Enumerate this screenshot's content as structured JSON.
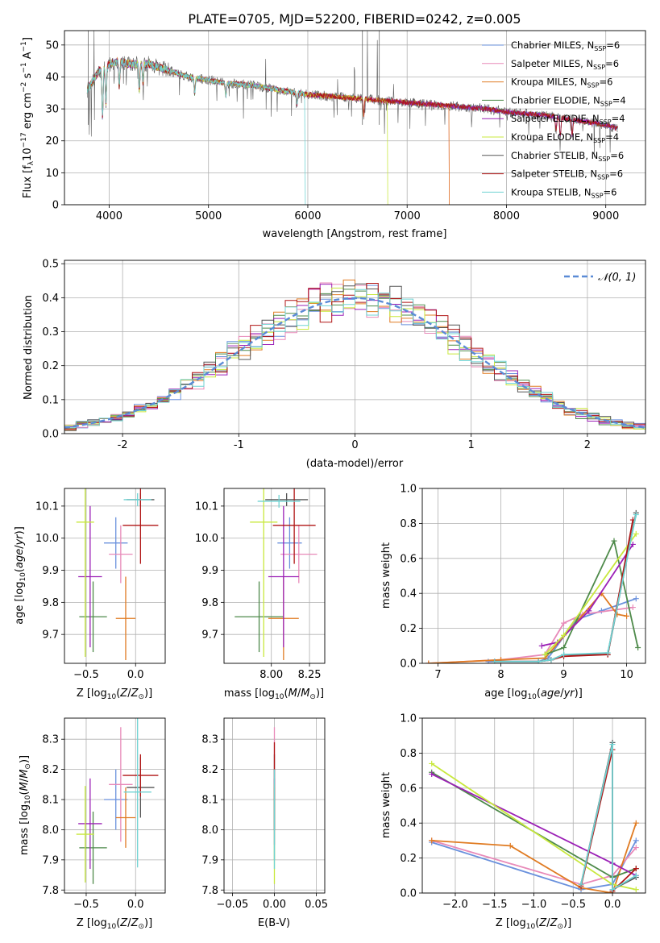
{
  "figure_title": "PLATE=0705, MJD=52200, FIBERID=0242, z=0.005",
  "colors": [
    "#6a91dd",
    "#e88ab9",
    "#e07b22",
    "#4e8a4a",
    "#9b20b6",
    "#c8e83c",
    "#555555",
    "#b01515",
    "#6fd3d3"
  ],
  "series_names": [
    "Chabrier MILES, N_SSP=6",
    "Salpeter MILES, N_SSP=6",
    "Kroupa MILES, N_SSP=6",
    "Chabrier ELODIE, N_SSP=4",
    "Salpeter ELODIE, N_SSP=4",
    "Kroupa ELODIE, N_SSP=4",
    "Chabrier STELIB, N_SSP=6",
    "Salpeter STELIB, N_SSP=6",
    "Kroupa STELIB, N_SSP=6"
  ],
  "legend_parts": [
    [
      "Chabrier MILES, N",
      "SSP",
      "=6"
    ],
    [
      "Salpeter MILES, N",
      "SSP",
      "=6"
    ],
    [
      "Kroupa MILES, N",
      "SSP",
      "=6"
    ],
    [
      "Chabrier ELODIE, N",
      "SSP",
      "=4"
    ],
    [
      "Salpeter ELODIE, N",
      "SSP",
      "=4"
    ],
    [
      "Kroupa ELODIE, N",
      "SSP",
      "=4"
    ],
    [
      "Chabrier STELIB, N",
      "SSP",
      "=6"
    ],
    [
      "Salpeter STELIB, N",
      "SSP",
      "=6"
    ],
    [
      "Kroupa STELIB, N",
      "SSP",
      "=6"
    ]
  ],
  "axis_text": {
    "spec_xlabel": "wavelength [Angstrom, rest frame]",
    "spec_ylabel": "Flux [f_λ10^-17 erg cm^-2 s^-1 A^-1]",
    "hist_xlabel": "(data-model)/error",
    "hist_ylabel": "Normed distribution",
    "hist_legend": "𝒩(0, 1)",
    "age_ylabel": "age  [log10(age/yr)]",
    "z_xlabel": "Z [log10(Z/Z⊙)]",
    "mass_xlabel": "mass [log10(M/M⊙)]",
    "mass_ylabel": "mass [log10(M/M⊙)]",
    "ebv_xlabel": "E(B-V)",
    "mw_ylabel": "mass weight",
    "age_xlabel": "age  [log10(age/yr)]"
  },
  "chart_data": [
    {
      "id": "spectrum",
      "type": "line",
      "title": "PLATE=0705, MJD=52200, FIBERID=0242, z=0.005",
      "xlabel": "wavelength [Angstrom, rest frame]",
      "ylabel": "Flux [f_λ10^-17 erg cm^-2 s^-1 A^-1]",
      "xlim": [
        3550,
        9400
      ],
      "ylim": [
        0,
        54.5
      ],
      "xticks": [
        4000,
        5000,
        6000,
        7000,
        8000,
        9000
      ],
      "yticks": [
        0,
        10,
        20,
        30,
        40,
        50
      ],
      "legend": "top-right",
      "continuum": [
        [
          3780,
          36
        ],
        [
          3900,
          42
        ],
        [
          4000,
          44
        ],
        [
          4100,
          45
        ],
        [
          4200,
          44
        ],
        [
          4400,
          44
        ],
        [
          4600,
          42
        ],
        [
          4800,
          40
        ],
        [
          5000,
          39
        ],
        [
          5200,
          38
        ],
        [
          5400,
          37.5
        ],
        [
          5600,
          36.5
        ],
        [
          5800,
          35.5
        ],
        [
          6000,
          34.5
        ],
        [
          6200,
          34
        ],
        [
          6400,
          33.5
        ],
        [
          6600,
          33
        ],
        [
          6800,
          32.5
        ],
        [
          7000,
          32
        ],
        [
          7200,
          31.5
        ],
        [
          7400,
          31
        ],
        [
          7600,
          30.5
        ],
        [
          7800,
          30
        ],
        [
          8000,
          29
        ],
        [
          8200,
          28.5
        ],
        [
          8400,
          28
        ],
        [
          8600,
          27
        ],
        [
          8800,
          26
        ],
        [
          9000,
          25
        ],
        [
          9100,
          24
        ]
      ],
      "absorption": [
        [
          3933,
          15
        ],
        [
          3968,
          12
        ],
        [
          4102,
          8
        ],
        [
          4304,
          8
        ],
        [
          4341,
          6
        ],
        [
          4861,
          5
        ],
        [
          5175,
          4
        ],
        [
          5890,
          4
        ],
        [
          6563,
          5
        ],
        [
          8498,
          4
        ],
        [
          8542,
          6
        ],
        [
          8662,
          5
        ]
      ],
      "spikes": [
        [
          3800,
          20
        ],
        [
          3820,
          18
        ],
        [
          3850,
          14
        ],
        [
          4050,
          8
        ],
        [
          5577,
          10
        ],
        [
          6300,
          6
        ],
        [
          6470,
          10
        ],
        [
          6600,
          20
        ],
        [
          6700,
          20
        ],
        [
          6864,
          6
        ]
      ],
      "range_ends": [
        [
          "Salpeter MILES",
          7420
        ],
        [
          "Kroupa MILES",
          7420
        ],
        [
          "Kroupa ELODIE",
          6800
        ],
        [
          "Kroupa STELIB",
          5970
        ]
      ]
    },
    {
      "id": "residuals",
      "type": "bar",
      "xlabel": "(data-model)/error",
      "ylabel": "Normed distribution",
      "xlim": [
        -2.5,
        2.5
      ],
      "ylim": [
        0,
        0.51
      ],
      "xticks": [
        -2,
        -1,
        0,
        1,
        2
      ],
      "yticks": [
        0.0,
        0.1,
        0.2,
        0.3,
        0.4,
        0.5
      ],
      "bin_width": 0.1,
      "reference_curve": "N(0,1)",
      "reference_label": "𝒩(0, 1)",
      "legend": "top-right"
    },
    {
      "id": "age_vs_Z",
      "type": "scatter",
      "xlabel": "Z [log10(Z/Z⊙)]",
      "ylabel": "age  [log10(age/yr)]",
      "xlim": [
        -0.72,
        0.3
      ],
      "ylim": [
        9.61,
        10.155
      ],
      "xticks": [
        -0.5,
        0.0
      ],
      "yticks": [
        9.7,
        9.8,
        9.9,
        10.0,
        10.1
      ],
      "points": [
        {
          "x": -0.2,
          "y": 9.985,
          "xerr": 0.12,
          "yerr": 0.08
        },
        {
          "x": -0.15,
          "y": 9.95,
          "xerr": 0.12,
          "yerr": 0.09
        },
        {
          "x": -0.1,
          "y": 9.75,
          "xerr": 0.1,
          "yerr": 0.13
        },
        {
          "x": -0.43,
          "y": 9.755,
          "xerr": 0.14,
          "yerr": 0.11
        },
        {
          "x": -0.46,
          "y": 9.88,
          "xerr": 0.12,
          "yerr": 0.22
        },
        {
          "x": -0.51,
          "y": 10.05,
          "xerr": 0.09,
          "yerr": 0.42
        },
        {
          "x": 0.05,
          "y": 10.12,
          "xerr": 0.14,
          "yerr": 0.02
        },
        {
          "x": 0.05,
          "y": 10.04,
          "xerr": 0.18,
          "yerr": 0.12
        },
        {
          "x": 0.02,
          "y": 10.12,
          "xerr": 0.14,
          "yerr": 0.02
        }
      ]
    },
    {
      "id": "age_vs_mass",
      "type": "scatter",
      "xlabel": "mass [log10(M/M⊙)]",
      "ylabel": "",
      "xlim": [
        7.69,
        8.35
      ],
      "ylim": [
        9.61,
        10.155
      ],
      "xticks": [
        8.0,
        8.25
      ],
      "points": [
        {
          "x": 8.12,
          "y": 9.985,
          "xerr": 0.08,
          "yerr": 0.08
        },
        {
          "x": 8.18,
          "y": 9.95,
          "xerr": 0.12,
          "yerr": 0.09
        },
        {
          "x": 8.08,
          "y": 9.75,
          "xerr": 0.1,
          "yerr": 0.13
        },
        {
          "x": 7.92,
          "y": 9.755,
          "xerr": 0.16,
          "yerr": 0.11
        },
        {
          "x": 8.08,
          "y": 9.88,
          "xerr": 0.1,
          "yerr": 0.22
        },
        {
          "x": 7.95,
          "y": 10.05,
          "xerr": 0.09,
          "yerr": 0.42
        },
        {
          "x": 8.1,
          "y": 10.12,
          "xerr": 0.14,
          "yerr": 0.02
        },
        {
          "x": 8.15,
          "y": 10.04,
          "xerr": 0.14,
          "yerr": 0.12
        },
        {
          "x": 8.05,
          "y": 10.115,
          "xerr": 0.14,
          "yerr": 0.02
        }
      ]
    },
    {
      "id": "mw_vs_age",
      "type": "line",
      "xlabel": "age  [log10(age/yr)]",
      "ylabel": "mass weight",
      "xlim": [
        6.75,
        10.3
      ],
      "ylim": [
        0,
        1.0
      ],
      "xticks": [
        7,
        8,
        9,
        10
      ],
      "yticks": [
        0.0,
        0.2,
        0.4,
        0.6,
        0.8,
        1.0
      ],
      "series": [
        {
          "name": "Chabrier MILES, N_SSP=6",
          "x": [
            7.8,
            8.6,
            8.75,
            9.2,
            9.6,
            10.15
          ],
          "y": [
            0.01,
            0.01,
            0.03,
            0.25,
            0.3,
            0.37
          ]
        },
        {
          "name": "Salpeter MILES, N_SSP=6",
          "x": [
            6.85,
            8.0,
            8.7,
            9.0,
            9.3,
            10.1
          ],
          "y": [
            0.0,
            0.02,
            0.05,
            0.23,
            0.28,
            0.32
          ]
        },
        {
          "name": "Kroupa MILES, N_SSP=6",
          "x": [
            6.85,
            8.0,
            8.7,
            9.6,
            9.85,
            10.0
          ],
          "y": [
            0.0,
            0.02,
            0.03,
            0.4,
            0.28,
            0.27
          ]
        },
        {
          "name": "Chabrier ELODIE, N_SSP=4",
          "x": [
            8.7,
            9.0,
            9.8,
            10.18
          ],
          "y": [
            0.05,
            0.09,
            0.7,
            0.09
          ]
        },
        {
          "name": "Salpeter ELODIE, N_SSP=4",
          "x": [
            8.65,
            8.9,
            9.4,
            10.1
          ],
          "y": [
            0.1,
            0.12,
            0.3,
            0.68
          ]
        },
        {
          "name": "Kroupa ELODIE, N_SSP=4",
          "x": [
            8.7,
            9.0,
            10.15
          ],
          "y": [
            0.05,
            0.16,
            0.74
          ]
        },
        {
          "name": "Chabrier STELIB, N_SSP=6",
          "x": [
            7.9,
            8.6,
            8.8,
            9.0,
            9.7,
            10.15
          ],
          "y": [
            0.01,
            0.01,
            0.02,
            0.05,
            0.05,
            0.86
          ]
        },
        {
          "name": "Salpeter STELIB, N_SSP=6",
          "x": [
            7.9,
            8.6,
            8.8,
            9.0,
            9.7,
            10.1
          ],
          "y": [
            0.01,
            0.01,
            0.02,
            0.04,
            0.05,
            0.82
          ]
        },
        {
          "name": "Kroupa STELIB, N_SSP=6",
          "x": [
            7.9,
            8.6,
            8.8,
            9.0,
            9.7,
            10.15
          ],
          "y": [
            0.01,
            0.01,
            0.02,
            0.05,
            0.06,
            0.85
          ]
        }
      ]
    },
    {
      "id": "mass_vs_Z",
      "type": "scatter",
      "xlabel": "Z [log10(Z/Z⊙)]",
      "ylabel": "mass [log10(M/M⊙)]",
      "xlim": [
        -0.72,
        0.3
      ],
      "ylim": [
        7.79,
        8.37
      ],
      "xticks": [
        -0.5,
        0.0
      ],
      "yticks": [
        7.8,
        7.9,
        8.0,
        8.1,
        8.2,
        8.3
      ],
      "points": [
        {
          "x": -0.2,
          "y": 8.1,
          "xerr": 0.12,
          "yerr": 0.1
        },
        {
          "x": -0.15,
          "y": 8.15,
          "xerr": 0.12,
          "yerr": 0.19
        },
        {
          "x": -0.1,
          "y": 8.04,
          "xerr": 0.1,
          "yerr": 0.1
        },
        {
          "x": -0.43,
          "y": 7.94,
          "xerr": 0.14,
          "yerr": 0.12
        },
        {
          "x": -0.46,
          "y": 8.02,
          "xerr": 0.12,
          "yerr": 0.15
        },
        {
          "x": -0.51,
          "y": 7.985,
          "xerr": 0.09,
          "yerr": 0.16
        },
        {
          "x": 0.05,
          "y": 8.14,
          "xerr": 0.14,
          "yerr": 0.1
        },
        {
          "x": 0.05,
          "y": 8.18,
          "xerr": 0.18,
          "yerr": 0.07
        },
        {
          "x": 0.02,
          "y": 8.125,
          "xerr": 0.14,
          "yerr": 0.25
        }
      ]
    },
    {
      "id": "mass_vs_ebv",
      "type": "scatter",
      "xlabel": "E(B-V)",
      "ylabel": "",
      "xlim": [
        -0.06,
        0.06
      ],
      "ylim": [
        7.79,
        8.37
      ],
      "xticks": [
        -0.05,
        0.0,
        0.05
      ],
      "xtick_labels": [
        "−0.05",
        "0.00",
        "0.05"
      ],
      "points_x": 0.0,
      "points_y_min": [
        8.0,
        8.0,
        8.0,
        7.9,
        7.95,
        7.82,
        8.0,
        8.1,
        7.87
      ],
      "points_y_max": [
        8.2,
        8.34,
        8.14,
        8.1,
        8.17,
        8.15,
        8.25,
        8.29,
        8.2
      ]
    },
    {
      "id": "mw_vs_Z",
      "type": "line",
      "xlabel": "Z [log10(Z/Z⊙)]",
      "ylabel": "mass weight",
      "xlim": [
        -2.42,
        0.42
      ],
      "ylim": [
        0,
        1.0
      ],
      "xticks": [
        -2.0,
        -1.5,
        -1.0,
        -0.5,
        0.0
      ],
      "xtick_labels": [
        "−2.0",
        "−1.5",
        "−1.0",
        "−0.5",
        "0.0"
      ],
      "yticks": [
        0.0,
        0.2,
        0.4,
        0.6,
        0.8,
        1.0
      ],
      "series": [
        {
          "name": "Chabrier MILES, N_SSP=6",
          "x": [
            -2.3,
            -0.4,
            0.0,
            0.3
          ],
          "y": [
            0.29,
            0.02,
            0.05,
            0.3
          ]
        },
        {
          "name": "Salpeter MILES, N_SSP=6",
          "x": [
            -2.3,
            -0.4,
            0.0,
            0.3
          ],
          "y": [
            0.3,
            0.05,
            0.1,
            0.26
          ]
        },
        {
          "name": "Kroupa MILES, N_SSP=6",
          "x": [
            -2.3,
            -1.3,
            -0.4,
            0.0,
            0.3
          ],
          "y": [
            0.3,
            0.27,
            0.03,
            0.0,
            0.4
          ]
        },
        {
          "name": "Chabrier ELODIE, N_SSP=4",
          "x": [
            -2.3,
            0.0,
            0.3
          ],
          "y": [
            0.69,
            0.09,
            0.14
          ]
        },
        {
          "name": "Salpeter ELODIE, N_SSP=4",
          "x": [
            -2.3,
            0.0,
            0.3
          ],
          "y": [
            0.68,
            0.17,
            0.1
          ]
        },
        {
          "name": "Kroupa ELODIE, N_SSP=4",
          "x": [
            -2.3,
            0.0,
            0.3
          ],
          "y": [
            0.74,
            0.05,
            0.02
          ]
        },
        {
          "name": "Chabrier STELIB, N_SSP=6",
          "x": [
            -0.4,
            0.0,
            0.0,
            0.3
          ],
          "y": [
            0.05,
            0.86,
            0.02,
            0.09
          ]
        },
        {
          "name": "Salpeter STELIB, N_SSP=6",
          "x": [
            -0.4,
            0.0,
            0.0,
            0.3
          ],
          "y": [
            0.04,
            0.82,
            0.01,
            0.14
          ]
        },
        {
          "name": "Kroupa STELIB, N_SSP=6",
          "x": [
            -0.4,
            0.0,
            0.0,
            0.3
          ],
          "y": [
            0.05,
            0.85,
            0.02,
            0.1
          ]
        }
      ]
    }
  ]
}
